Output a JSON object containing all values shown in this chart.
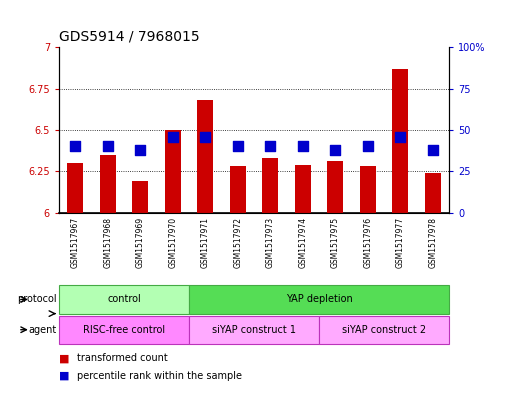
{
  "title": "GDS5914 / 7968015",
  "samples": [
    "GSM1517967",
    "GSM1517968",
    "GSM1517969",
    "GSM1517970",
    "GSM1517971",
    "GSM1517972",
    "GSM1517973",
    "GSM1517974",
    "GSM1517975",
    "GSM1517976",
    "GSM1517977",
    "GSM1517978"
  ],
  "transformed_counts": [
    6.3,
    6.35,
    6.19,
    6.5,
    6.68,
    6.28,
    6.33,
    6.29,
    6.31,
    6.28,
    6.87,
    6.24
  ],
  "percentile_ranks": [
    40,
    40,
    38,
    46,
    46,
    40,
    40,
    40,
    38,
    40,
    46,
    38
  ],
  "ylim_left": [
    6.0,
    7.0
  ],
  "ylim_right": [
    0,
    100
  ],
  "yticks_left": [
    6.0,
    6.25,
    6.5,
    6.75,
    7.0
  ],
  "yticks_right": [
    0,
    25,
    50,
    75,
    100
  ],
  "bar_color": "#cc0000",
  "dot_color": "#0000cc",
  "bar_width": 0.5,
  "dot_size": 50,
  "grid_values": [
    6.25,
    6.5,
    6.75
  ],
  "protocol_labels": [
    "control",
    "YAP depletion"
  ],
  "protocol_color_light": "#b3ffb3",
  "protocol_color_dark": "#55dd55",
  "agent_color_light": "#ff88ff",
  "agent_color_dark": "#ee66ee",
  "legend_bar_label": "transformed count",
  "legend_dot_label": "percentile rank within the sample",
  "plot_bg_color": "#ffffff",
  "title_fontsize": 10,
  "tick_fontsize": 7,
  "sample_fontsize": 5.5,
  "row_fontsize": 7,
  "legend_fontsize": 7
}
